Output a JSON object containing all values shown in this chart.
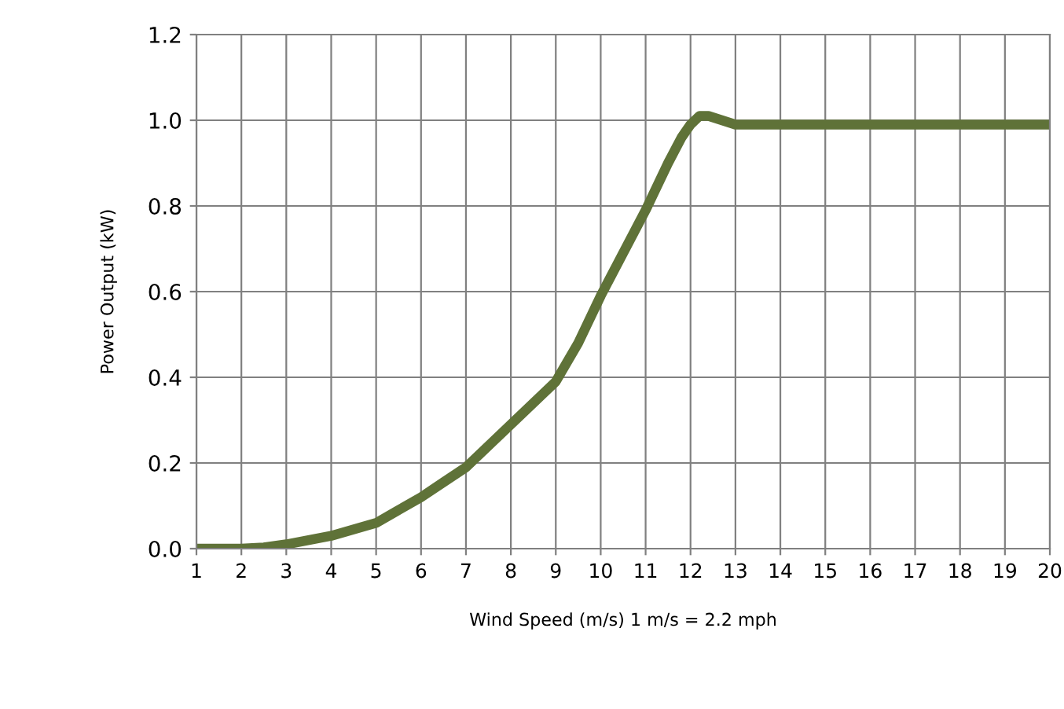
{
  "chart_data": {
    "type": "line",
    "xlabel": "Wind Speed (m/s) 1 m/s = 2.2 mph",
    "ylabel": "Power Output (kW)",
    "x": [
      1,
      2,
      2.5,
      3,
      3.5,
      4,
      4.5,
      5,
      5.5,
      6,
      6.5,
      7,
      7.5,
      8,
      8.5,
      9,
      9.5,
      10,
      10.5,
      11,
      11.5,
      11.8,
      12,
      12.2,
      12.4,
      12.7,
      13,
      14,
      15,
      16,
      17,
      18,
      19,
      20
    ],
    "series": [
      {
        "color": "#5f7238",
        "values": [
          0,
          0,
          0.003,
          0.01,
          0.02,
          0.03,
          0.045,
          0.06,
          0.09,
          0.12,
          0.155,
          0.19,
          0.24,
          0.29,
          0.34,
          0.39,
          0.48,
          0.59,
          0.69,
          0.79,
          0.9,
          0.96,
          0.99,
          1.01,
          1.01,
          1.0,
          0.99,
          0.99,
          0.99,
          0.99,
          0.99,
          0.99,
          0.99,
          0.99
        ]
      }
    ],
    "xlim": [
      1,
      20
    ],
    "xticks": [
      1,
      2,
      3,
      4,
      5,
      6,
      7,
      8,
      9,
      10,
      11,
      12,
      13,
      14,
      15,
      16,
      17,
      18,
      19,
      20
    ],
    "ylim": [
      0,
      1.2
    ],
    "yticks": [
      {
        "value": 0,
        "label": "0.0"
      },
      {
        "value": 0.2,
        "label": "0.2"
      },
      {
        "value": 0.4,
        "label": "0.4"
      },
      {
        "value": 0.6,
        "label": "0.6"
      },
      {
        "value": 0.8,
        "label": "0.8"
      },
      {
        "value": 1.0,
        "label": "1.0"
      },
      {
        "value": 1.2,
        "label": "1.2"
      }
    ],
    "grid": true,
    "legend": false,
    "marker": "none",
    "line_style": "solid"
  }
}
